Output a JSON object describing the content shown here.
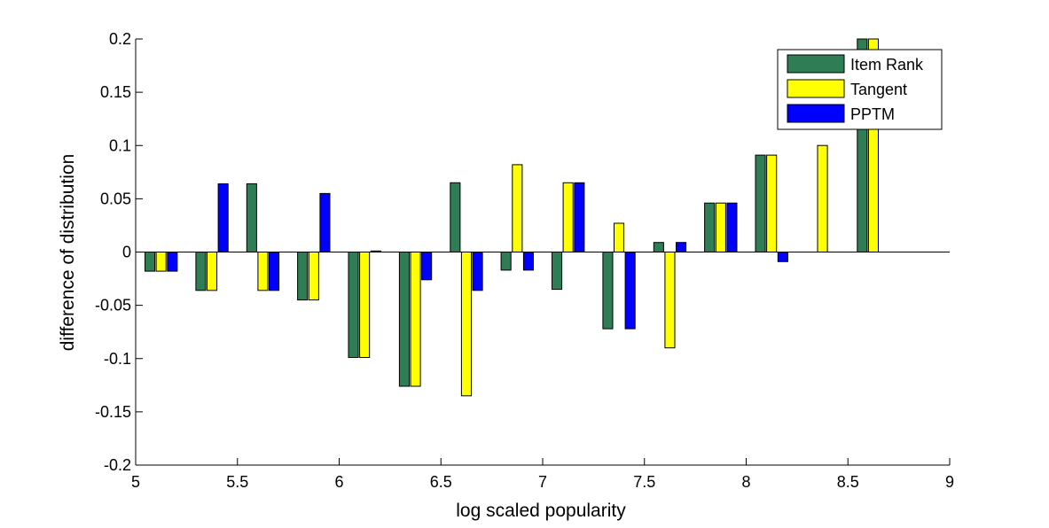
{
  "chart_data": {
    "type": "bar",
    "xlabel": "log scaled popularity",
    "ylabel": "difference of distribution",
    "xlim": [
      5,
      9
    ],
    "ylim": [
      -0.2,
      0.2
    ],
    "xticks": [
      "5",
      "5.5",
      "6",
      "6.5",
      "7",
      "7.5",
      "8",
      "8.5",
      "9"
    ],
    "yticks": [
      "-0.2",
      "-0.15",
      "-0.1",
      "-0.05",
      "0",
      "0.05",
      "0.1",
      "0.15",
      "0.2"
    ],
    "legend_position": "top-right",
    "grid": false,
    "bar_width_x": 0.055,
    "x": [
      5.125,
      5.375,
      5.625,
      5.875,
      6.125,
      6.375,
      6.625,
      6.875,
      7.125,
      7.375,
      7.625,
      7.875,
      8.125,
      8.375,
      8.625
    ],
    "series": [
      {
        "name": "Item Rank",
        "color": "#2e7d55",
        "values": [
          -0.018,
          -0.036,
          0.064,
          -0.045,
          -0.099,
          -0.126,
          0.065,
          -0.017,
          -0.035,
          -0.072,
          0.009,
          0.046,
          0.091,
          0,
          0.2
        ]
      },
      {
        "name": "Tangent",
        "color": "#ffff00",
        "values": [
          -0.018,
          -0.036,
          -0.036,
          -0.045,
          -0.099,
          -0.126,
          -0.135,
          0.082,
          0.065,
          0.027,
          -0.09,
          0.046,
          0.091,
          0.1,
          0.2
        ]
      },
      {
        "name": "PPTM",
        "color": "#0000ff",
        "values": [
          -0.018,
          0.064,
          -0.036,
          0.055,
          0.001,
          -0.026,
          -0.036,
          -0.017,
          0.065,
          -0.072,
          0.009,
          0.046,
          -0.009,
          0,
          0
        ]
      }
    ]
  }
}
